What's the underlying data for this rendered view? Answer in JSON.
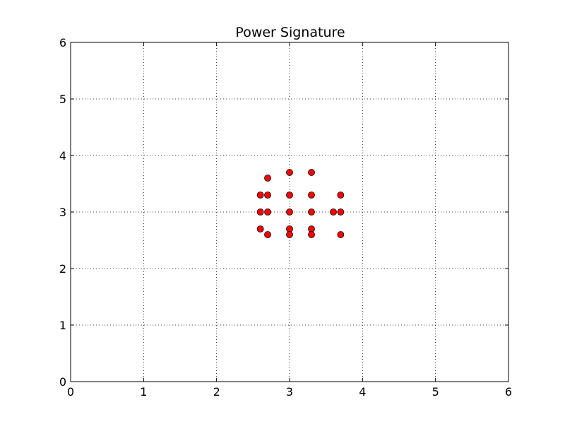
{
  "chart_data": {
    "type": "scatter",
    "title": "Power Signature",
    "xlabel": "",
    "ylabel": "",
    "xlim": [
      0,
      6
    ],
    "ylim": [
      0,
      6
    ],
    "xticks": [
      0,
      1,
      2,
      3,
      4,
      5,
      6
    ],
    "yticks": [
      0,
      1,
      2,
      3,
      4,
      5,
      6
    ],
    "xtick_labels": [
      "0",
      "1",
      "2",
      "3",
      "4",
      "5",
      "6"
    ],
    "ytick_labels": [
      "0",
      "1",
      "2",
      "3",
      "4",
      "5",
      "6"
    ],
    "grid": true,
    "grid_style": "dotted",
    "series": [
      {
        "color": "#ff0000",
        "edge_color": "#000000",
        "marker": "circle",
        "points": [
          {
            "x": 2.6,
            "y": 3.3
          },
          {
            "x": 2.6,
            "y": 3.0
          },
          {
            "x": 2.6,
            "y": 2.7
          },
          {
            "x": 2.7,
            "y": 3.6
          },
          {
            "x": 2.7,
            "y": 3.3
          },
          {
            "x": 2.7,
            "y": 3.0
          },
          {
            "x": 2.7,
            "y": 2.6
          },
          {
            "x": 3.0,
            "y": 3.7
          },
          {
            "x": 3.0,
            "y": 3.3
          },
          {
            "x": 3.0,
            "y": 3.0
          },
          {
            "x": 3.0,
            "y": 2.7
          },
          {
            "x": 3.0,
            "y": 2.6
          },
          {
            "x": 3.3,
            "y": 3.7
          },
          {
            "x": 3.3,
            "y": 3.3
          },
          {
            "x": 3.3,
            "y": 3.0
          },
          {
            "x": 3.3,
            "y": 2.7
          },
          {
            "x": 3.3,
            "y": 2.6
          },
          {
            "x": 3.6,
            "y": 3.0
          },
          {
            "x": 3.7,
            "y": 3.3
          },
          {
            "x": 3.7,
            "y": 3.0
          },
          {
            "x": 3.7,
            "y": 2.6
          }
        ]
      }
    ]
  }
}
